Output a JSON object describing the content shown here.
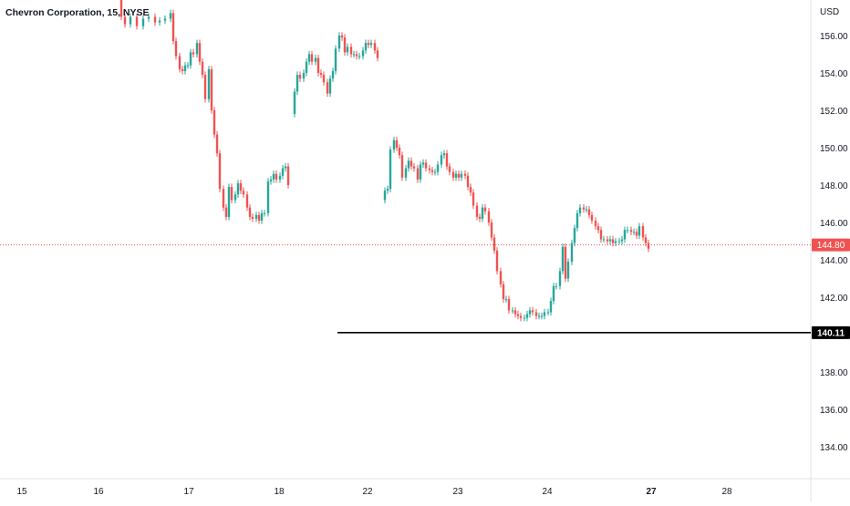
{
  "header": {
    "title": "Chevron Corporation, 15, NYSE"
  },
  "price_axis": {
    "currency": "USD"
  },
  "colors": {
    "up": "#26a69a",
    "down": "#ef5350",
    "current_line": "#ef5350",
    "level_line": "#000000",
    "grid_text": "#131722"
  },
  "chart_data": {
    "type": "candlestick",
    "title": "Chevron Corporation, 15, NYSE",
    "ylabel": "USD",
    "ylim": [
      132.3,
      157.9
    ],
    "y_ticks": [
      "156.00",
      "154.00",
      "152.00",
      "150.00",
      "148.00",
      "146.00",
      "144.00",
      "142.00",
      "138.00",
      "136.00",
      "134.00"
    ],
    "y_tick_values": [
      156,
      154,
      152,
      150,
      148,
      146,
      144,
      142,
      138,
      136,
      134
    ],
    "x_ticks": [
      "15",
      "16",
      "17",
      "18",
      "22",
      "23",
      "24",
      "27",
      "28"
    ],
    "x_tick_bold": [
      false,
      false,
      false,
      false,
      false,
      false,
      false,
      true,
      false
    ],
    "current_price": {
      "value": 144.8,
      "label": "144.80"
    },
    "horizontal_level": {
      "value": 140.11,
      "label": "140.11"
    },
    "grid": false,
    "legend": "none"
  }
}
